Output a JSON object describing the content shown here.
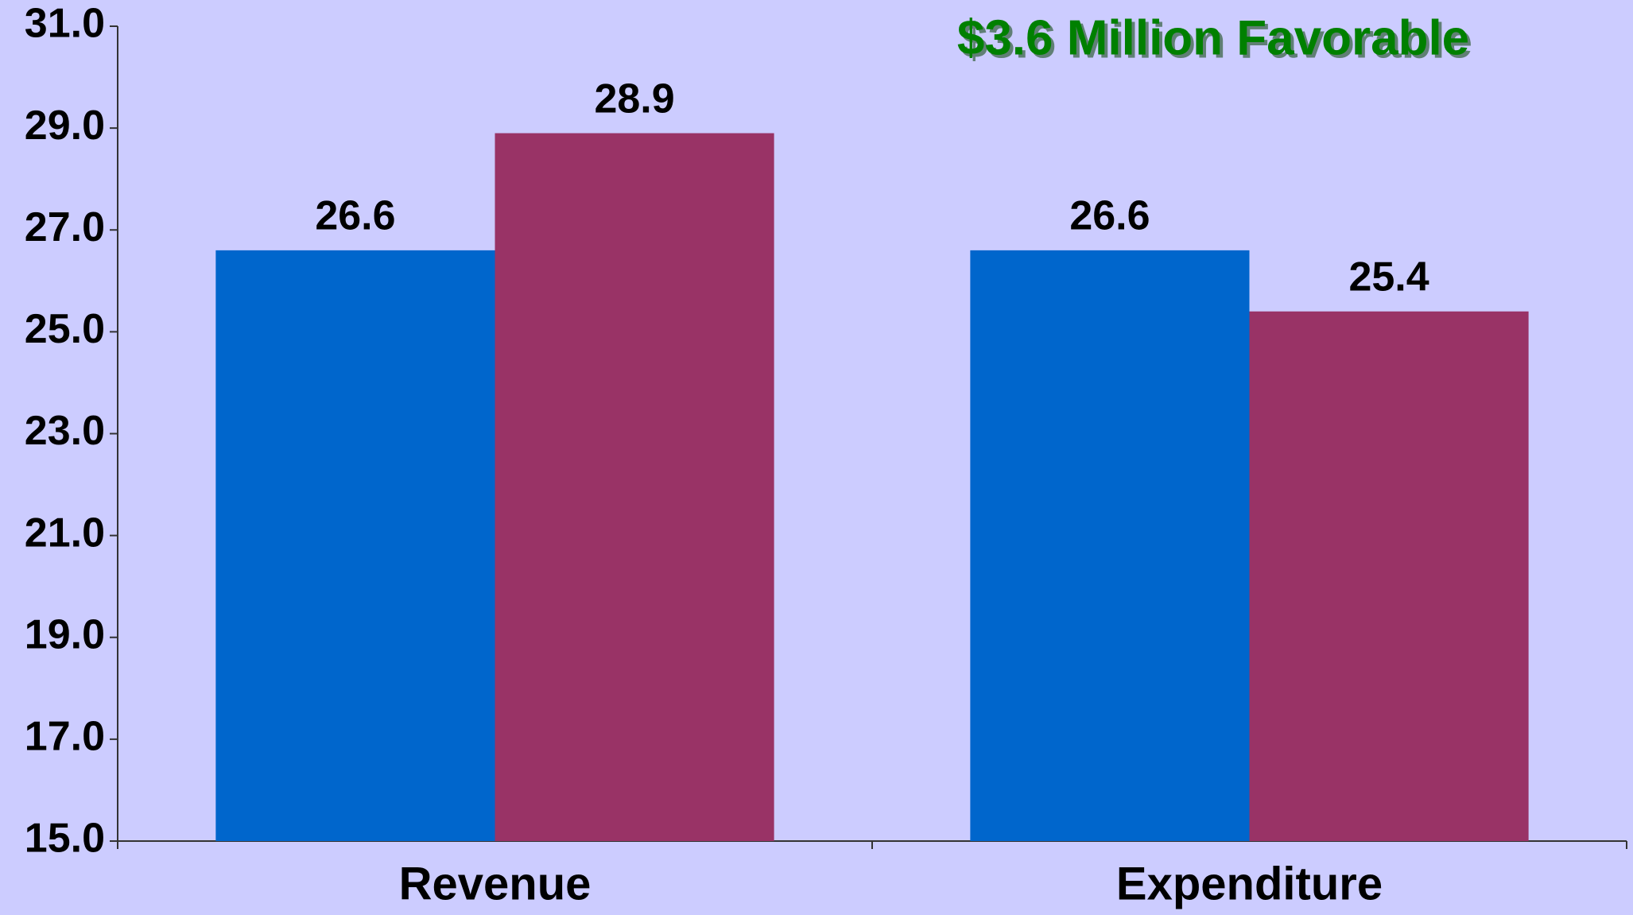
{
  "chart_data": {
    "type": "bar",
    "annotation": "$3.6 Million Favorable",
    "categories": [
      "Revenue",
      "Expenditure"
    ],
    "series": [
      {
        "color": "#0066cc",
        "values": [
          26.6,
          26.6
        ]
      },
      {
        "color": "#993366",
        "values": [
          28.9,
          25.4
        ]
      }
    ],
    "ylim": [
      15,
      31
    ],
    "yticks": [
      {
        "value": 15,
        "label": "15.0"
      },
      {
        "value": 17,
        "label": "17.0"
      },
      {
        "value": 19,
        "label": "19.0"
      },
      {
        "value": 21,
        "label": "21.0"
      },
      {
        "value": 23,
        "label": "23.0"
      },
      {
        "value": 25,
        "label": "25.0"
      },
      {
        "value": 27,
        "label": "27.0"
      },
      {
        "value": 29,
        "label": "29.0"
      },
      {
        "value": 31,
        "label": "31.0"
      }
    ],
    "grid": false
  }
}
